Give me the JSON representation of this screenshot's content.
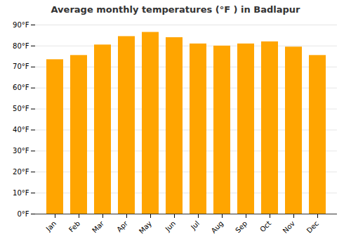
{
  "chart_data": {
    "type": "bar",
    "title": "Average monthly temperatures (°F ) in Badlapur",
    "categories": [
      "Jan",
      "Feb",
      "Mar",
      "Apr",
      "May",
      "Jun",
      "Jul",
      "Aug",
      "Sep",
      "Oct",
      "Nov",
      "Dec"
    ],
    "values": [
      73.5,
      75.5,
      80.5,
      84.5,
      86.5,
      84.0,
      81.0,
      80.0,
      81.0,
      82.0,
      79.5,
      75.5
    ],
    "color": "#FFA500",
    "ylim": [
      0,
      90
    ],
    "yticks": [
      {
        "value": 0,
        "label": "0°F"
      },
      {
        "value": 10,
        "label": "10°F"
      },
      {
        "value": 20,
        "label": "20°F"
      },
      {
        "value": 30,
        "label": "30°F"
      },
      {
        "value": 40,
        "label": "40°F"
      },
      {
        "value": 50,
        "label": "50°F"
      },
      {
        "value": 60,
        "label": "60°F"
      },
      {
        "value": 70,
        "label": "70°F"
      },
      {
        "value": 80,
        "label": "80°F"
      },
      {
        "value": 90,
        "label": "90°F"
      }
    ],
    "grid": true
  }
}
